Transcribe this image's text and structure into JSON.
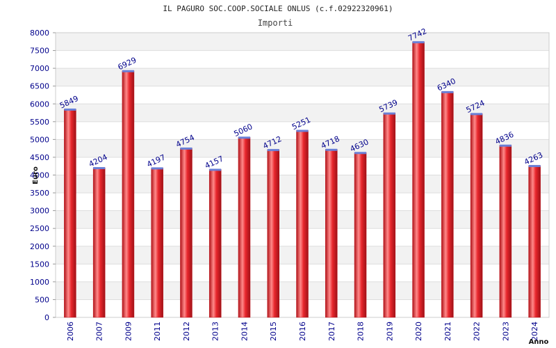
{
  "chart_data": {
    "type": "bar",
    "title": "IL PAGURO SOC.COOP.SOCIALE ONLUS (c.f.02922320961)",
    "subtitle": "Importi",
    "xlabel": "Anno",
    "ylabel": "Euro",
    "ylim": [
      0,
      8000
    ],
    "ytick_step": 500,
    "grid": true,
    "categories": [
      "2006",
      "2007",
      "2009",
      "2011",
      "2012",
      "2013",
      "2014",
      "2015",
      "2016",
      "2017",
      "2018",
      "2019",
      "2020",
      "2021",
      "2022",
      "2023",
      "2024"
    ],
    "values": [
      5849,
      4204,
      6929,
      4197,
      4754,
      4157,
      5060,
      4712,
      5251,
      4718,
      4630,
      5739,
      7742,
      6340,
      5724,
      4836,
      4263
    ],
    "colors": {
      "bar": "#e8262c",
      "bar_highlight": "#ff8a8a",
      "bar_top": "#6a7fd6",
      "band": "#f2f2f2",
      "label": "#00008b"
    }
  }
}
